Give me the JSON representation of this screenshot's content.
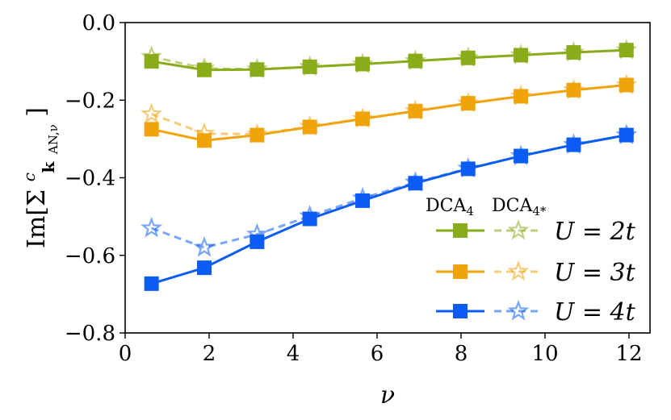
{
  "chart_data": {
    "type": "line",
    "title": "",
    "xlabel": "ν",
    "ylabel": "Im[Σ^c_{k_AN,ν}]",
    "ylabel_main": "Im[Σ",
    "ylabel_sup": "c",
    "ylabel_sub": "k",
    "ylabel_sub2": "AN,ν",
    "ylabel_close": "]",
    "xlim": [
      0,
      12.5
    ],
    "ylim": [
      -0.8,
      0.0
    ],
    "xticks": [
      0,
      2,
      4,
      6,
      8,
      10,
      12
    ],
    "xtick_labels": [
      "0",
      "2",
      "4",
      "6",
      "8",
      "10",
      "12"
    ],
    "yticks": [
      0.0,
      -0.2,
      -0.4,
      -0.6,
      -0.8
    ],
    "ytick_labels": [
      "0.0",
      "−0.2",
      "−0.4",
      "−0.6",
      "−0.8"
    ],
    "x": [
      0.628,
      1.885,
      3.142,
      4.398,
      5.655,
      6.912,
      8.168,
      9.425,
      10.681,
      11.938
    ],
    "legend_headers": {
      "solid": "DCA",
      "solid_sub": "4",
      "dashed": "DCA",
      "dashed_sub": "4*"
    },
    "legend_position": "bottom-right",
    "series": [
      {
        "name": "U = 2t",
        "color": "#8aab1a",
        "dca4": [
          -0.1,
          -0.122,
          -0.121,
          -0.114,
          -0.107,
          -0.099,
          -0.091,
          -0.084,
          -0.077,
          -0.071
        ],
        "dca4star": [
          -0.088,
          -0.118,
          -0.12,
          -0.114,
          -0.107,
          -0.099,
          -0.091,
          -0.084,
          -0.077,
          -0.071
        ]
      },
      {
        "name": "U = 3t",
        "color": "#f0a30a",
        "dca4": [
          -0.275,
          -0.304,
          -0.29,
          -0.269,
          -0.248,
          -0.228,
          -0.208,
          -0.19,
          -0.174,
          -0.161
        ],
        "dca4star": [
          -0.236,
          -0.286,
          -0.288,
          -0.268,
          -0.248,
          -0.228,
          -0.208,
          -0.19,
          -0.174,
          -0.161
        ]
      },
      {
        "name": "U = 4t",
        "color": "#0a5cf5",
        "dca4": [
          -0.673,
          -0.632,
          -0.565,
          -0.506,
          -0.459,
          -0.414,
          -0.377,
          -0.344,
          -0.315,
          -0.29
        ],
        "dca4star": [
          -0.53,
          -0.58,
          -0.546,
          -0.499,
          -0.453,
          -0.412,
          -0.376,
          -0.344,
          -0.315,
          -0.29
        ]
      }
    ]
  }
}
